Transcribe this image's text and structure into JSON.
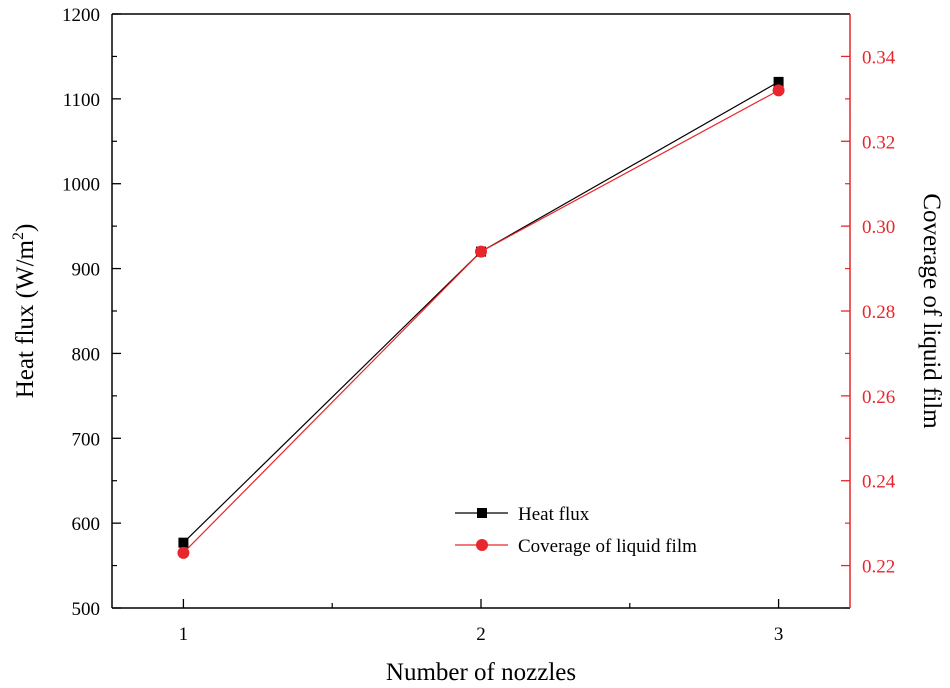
{
  "chart_data": {
    "type": "line",
    "x": [
      1,
      2,
      3
    ],
    "xlabel": "Number of nozzles",
    "ylabel_left": "Heat flux (W/m²)",
    "ylabel_left_parts": {
      "base": "Heat flux (W/m",
      "sup": "2",
      "close": ")"
    },
    "ylabel_right": "Coverage of liquid film",
    "xlim": [
      0.76,
      3.24
    ],
    "x_ticks": [
      1,
      2,
      3
    ],
    "ylim_left": [
      500,
      1200
    ],
    "y_ticks_left": [
      500,
      600,
      700,
      800,
      900,
      1000,
      1100,
      1200
    ],
    "ylim_right": [
      0.21,
      0.35
    ],
    "y_ticks_right": [
      "0.22",
      "0.24",
      "0.26",
      "0.28",
      "0.30",
      "0.32",
      "0.34"
    ],
    "legend_position": "lower-right",
    "series": [
      {
        "name": "Heat flux",
        "axis": "left",
        "color": "#000000",
        "marker": "square",
        "values": [
          577,
          920,
          1120
        ]
      },
      {
        "name": "Coverage of liquid film",
        "axis": "right",
        "color": "#e8262b",
        "marker": "circle",
        "values": [
          0.223,
          0.294,
          0.332
        ]
      }
    ]
  }
}
